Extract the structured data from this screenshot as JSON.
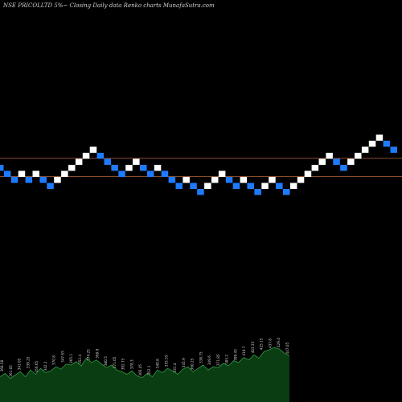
{
  "header": {
    "title": "NSE PRICOLLTD 5%~   Closing Daily data  Renko  charts MunafaSutra.com"
  },
  "chart_data": {
    "type": "renko",
    "title": "NSE PRICOLLTD 5%~   Closing Daily data  Renko  charts MunafaSutra.com",
    "brick_size_note": "5%",
    "colors": {
      "background": "#000000",
      "up_brick": "#ffffff",
      "down_brick": "#1e7bff",
      "reference_line": "#b4643c",
      "volume_fill": "#0a3d12",
      "volume_outline": "#2f9e44",
      "volume_label": "#cfcfcf"
    },
    "grid": false,
    "legend": "none",
    "reference_lines": [
      {
        "level": 11
      },
      {
        "level": 8
      }
    ],
    "bricks": [
      {
        "level": 10,
        "dir": "down"
      },
      {
        "level": 9,
        "dir": "down"
      },
      {
        "level": 8,
        "dir": "down"
      },
      {
        "level": 9,
        "dir": "up"
      },
      {
        "level": 8,
        "dir": "down"
      },
      {
        "level": 9,
        "dir": "up"
      },
      {
        "level": 8,
        "dir": "down"
      },
      {
        "level": 7,
        "dir": "down"
      },
      {
        "level": 8,
        "dir": "up"
      },
      {
        "level": 9,
        "dir": "up"
      },
      {
        "level": 10,
        "dir": "up"
      },
      {
        "level": 11,
        "dir": "up"
      },
      {
        "level": 12,
        "dir": "up"
      },
      {
        "level": 13,
        "dir": "up"
      },
      {
        "level": 12,
        "dir": "down"
      },
      {
        "level": 11,
        "dir": "down"
      },
      {
        "level": 10,
        "dir": "down"
      },
      {
        "level": 9,
        "dir": "down"
      },
      {
        "level": 10,
        "dir": "up"
      },
      {
        "level": 11,
        "dir": "up"
      },
      {
        "level": 10,
        "dir": "down"
      },
      {
        "level": 9,
        "dir": "down"
      },
      {
        "level": 10,
        "dir": "up"
      },
      {
        "level": 9,
        "dir": "down"
      },
      {
        "level": 8,
        "dir": "down"
      },
      {
        "level": 7,
        "dir": "down"
      },
      {
        "level": 8,
        "dir": "up"
      },
      {
        "level": 7,
        "dir": "down"
      },
      {
        "level": 6,
        "dir": "down"
      },
      {
        "level": 7,
        "dir": "up"
      },
      {
        "level": 8,
        "dir": "up"
      },
      {
        "level": 9,
        "dir": "up"
      },
      {
        "level": 8,
        "dir": "down"
      },
      {
        "level": 7,
        "dir": "down"
      },
      {
        "level": 8,
        "dir": "up"
      },
      {
        "level": 7,
        "dir": "down"
      },
      {
        "level": 6,
        "dir": "down"
      },
      {
        "level": 7,
        "dir": "up"
      },
      {
        "level": 8,
        "dir": "up"
      },
      {
        "level": 7,
        "dir": "down"
      },
      {
        "level": 6,
        "dir": "down"
      },
      {
        "level": 7,
        "dir": "up"
      },
      {
        "level": 8,
        "dir": "up"
      },
      {
        "level": 9,
        "dir": "up"
      },
      {
        "level": 10,
        "dir": "up"
      },
      {
        "level": 11,
        "dir": "up"
      },
      {
        "level": 12,
        "dir": "up"
      },
      {
        "level": 11,
        "dir": "down"
      },
      {
        "level": 10,
        "dir": "down"
      },
      {
        "level": 11,
        "dir": "up"
      },
      {
        "level": 12,
        "dir": "up"
      },
      {
        "level": 13,
        "dir": "up"
      },
      {
        "level": 14,
        "dir": "up"
      },
      {
        "level": 15,
        "dir": "up"
      },
      {
        "level": 14,
        "dir": "down"
      },
      {
        "level": 13,
        "dir": "down"
      }
    ],
    "volume": [
      30,
      34,
      28,
      32,
      36,
      30,
      38,
      33,
      40,
      35,
      37,
      42,
      39,
      45,
      44,
      48,
      43,
      52,
      47,
      50,
      45,
      41,
      44,
      38,
      36,
      33,
      37,
      31,
      29,
      34,
      30,
      38,
      35,
      40,
      37,
      33,
      39,
      42,
      36,
      40,
      44,
      38,
      42,
      41,
      46,
      43,
      49,
      47,
      53,
      50,
      56,
      52,
      60,
      62,
      65,
      63,
      58,
      55
    ],
    "volume_labels": [
      "368.58",
      "361.05",
      "341.05",
      "339.25",
      "356.65",
      "342.2",
      "370.8",
      "347.65",
      "365.1",
      "352.4",
      "374.25",
      "360.9",
      "380.5",
      "371.05",
      "392.75",
      "378.3",
      "366.45",
      "352.1",
      "340.8",
      "355.55",
      "331.4",
      "345.9",
      "360.25",
      "338.75",
      "349.6",
      "371.85",
      "385.2",
      "399.45",
      "410.7",
      "403.35",
      "425.15",
      "437.8",
      "429.4",
      "447.05"
    ]
  }
}
